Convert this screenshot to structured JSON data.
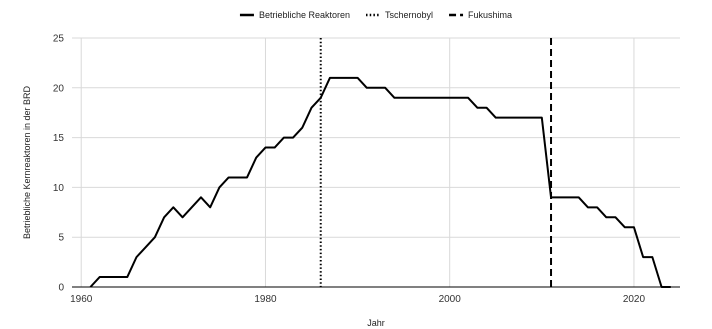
{
  "chart_data": {
    "type": "line",
    "title": "",
    "xlabel": "Jahr",
    "ylabel": "Betriebliche Kernreaktoren in der BRD",
    "xlim": [
      1959,
      2025
    ],
    "ylim": [
      0,
      25
    ],
    "xticks": [
      1960,
      1980,
      2000,
      2020
    ],
    "yticks": [
      0,
      5,
      10,
      15,
      20,
      25
    ],
    "grid": true,
    "legend_position": "top-center",
    "legend": [
      {
        "label": "Betriebliche Reaktoren",
        "style": "solid"
      },
      {
        "label": "Tschernobyl",
        "style": "dotted"
      },
      {
        "label": "Fukushima",
        "style": "dashed"
      }
    ],
    "series": [
      {
        "name": "Betriebliche Reaktoren",
        "color": "#000000",
        "x": [
          1961,
          1962,
          1963,
          1964,
          1965,
          1966,
          1967,
          1968,
          1969,
          1970,
          1971,
          1972,
          1973,
          1974,
          1975,
          1976,
          1977,
          1978,
          1979,
          1980,
          1981,
          1982,
          1983,
          1984,
          1985,
          1986,
          1987,
          1988,
          1989,
          1990,
          1991,
          1992,
          1993,
          1994,
          1995,
          1996,
          1997,
          1998,
          1999,
          2000,
          2001,
          2002,
          2003,
          2004,
          2005,
          2006,
          2007,
          2008,
          2009,
          2010,
          2011,
          2012,
          2013,
          2014,
          2015,
          2016,
          2017,
          2018,
          2019,
          2020,
          2021,
          2022,
          2023,
          2024
        ],
        "y": [
          0,
          1,
          1,
          1,
          1,
          3,
          4,
          5,
          7,
          8,
          7,
          8,
          9,
          8,
          10,
          11,
          11,
          11,
          13,
          14,
          14,
          15,
          15,
          16,
          18,
          19,
          21,
          21,
          21,
          21,
          20,
          20,
          20,
          19,
          19,
          19,
          19,
          19,
          19,
          19,
          19,
          19,
          18,
          18,
          17,
          17,
          17,
          17,
          17,
          17,
          9,
          9,
          9,
          9,
          8,
          8,
          7,
          7,
          6,
          6,
          3,
          3,
          0,
          0
        ]
      }
    ],
    "events": [
      {
        "name": "Tschernobyl",
        "x": 1986,
        "style": "dotted"
      },
      {
        "name": "Fukushima",
        "x": 2011,
        "style": "dashed"
      }
    ]
  }
}
